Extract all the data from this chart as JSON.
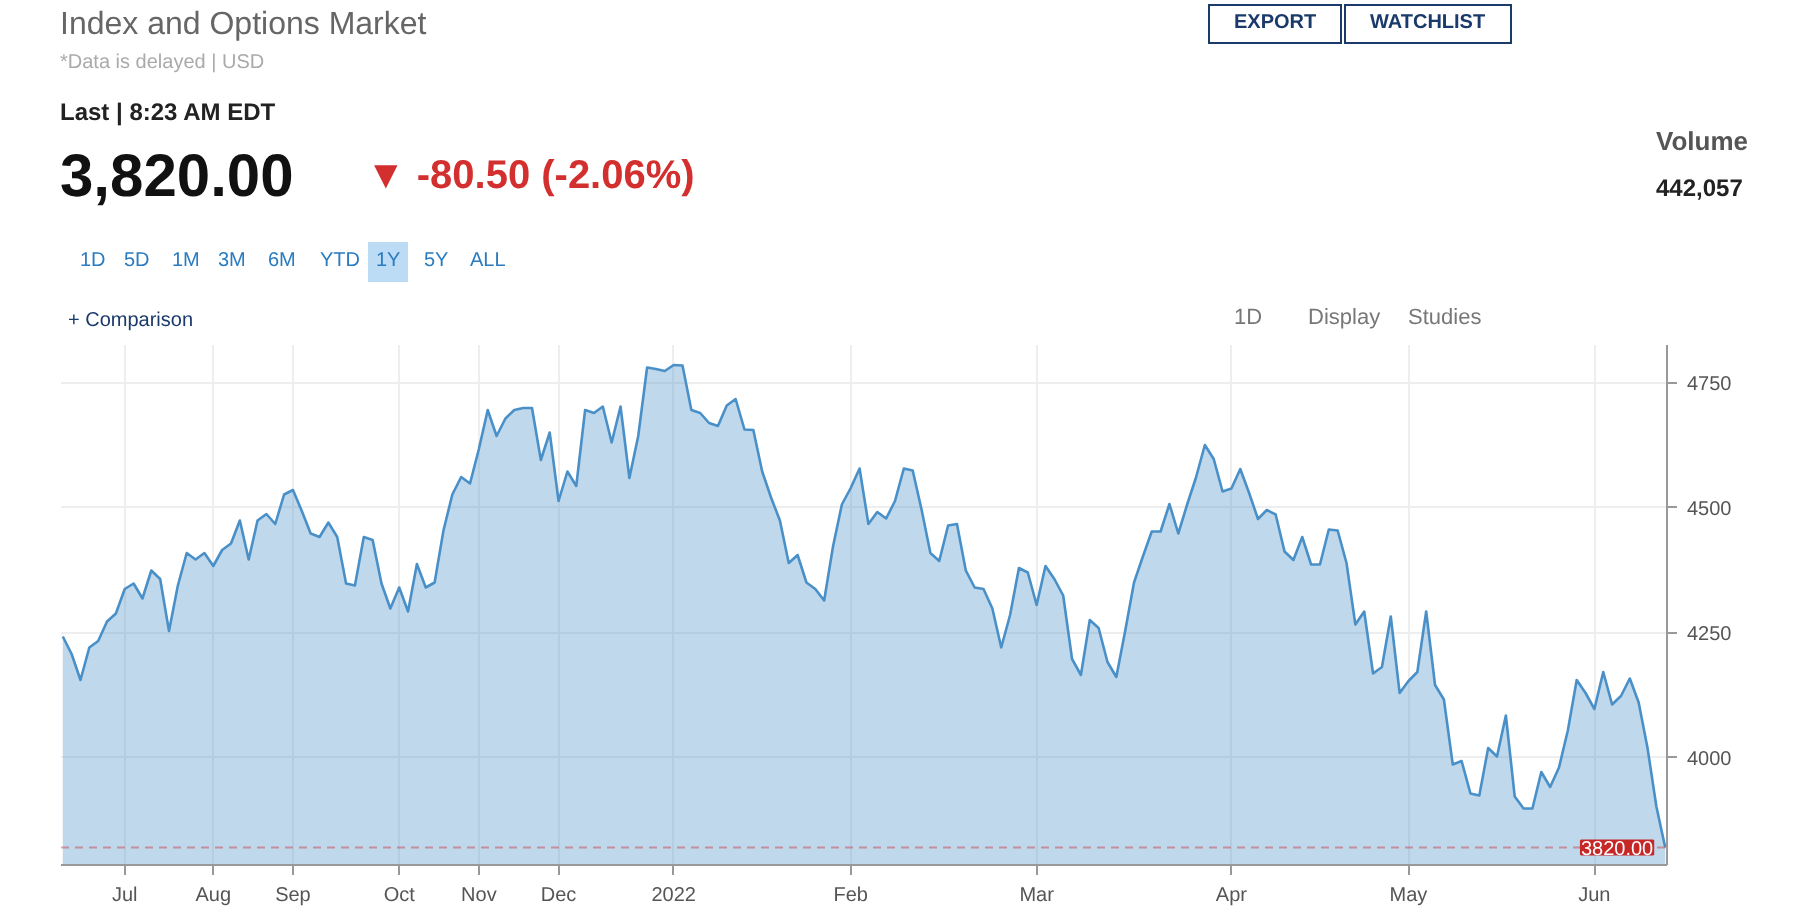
{
  "chart_data": {
    "type": "area",
    "title": "Index and Options Market",
    "subtitle": "*Data is delayed | USD",
    "annotations": [
      "Last | 8:23 AM EDT",
      "3,820.00",
      "▼ -80.50 (-2.06%)",
      "Volume",
      "442,057",
      "EXPORT",
      "WATCHLIST",
      "1D",
      "5D",
      "1M",
      "3M",
      "6M",
      "YTD",
      "1Y",
      "5Y",
      "ALL",
      "+ Comparison",
      "1D",
      "Display",
      "Studies"
    ],
    "categories": [
      null,
      null,
      null,
      null,
      null,
      null,
      null,
      "Jul",
      null,
      null,
      null,
      null,
      null,
      null,
      null,
      null,
      null,
      "Aug",
      null,
      null,
      null,
      null,
      null,
      null,
      null,
      null,
      "Sep",
      null,
      null,
      null,
      null,
      null,
      null,
      null,
      null,
      null,
      null,
      null,
      "Oct",
      null,
      null,
      null,
      null,
      null,
      null,
      null,
      null,
      "Nov",
      null,
      null,
      null,
      null,
      null,
      null,
      null,
      null,
      "Dec",
      null,
      null,
      null,
      null,
      null,
      null,
      null,
      null,
      null,
      null,
      null,
      null,
      "2022",
      null,
      null,
      null,
      null,
      null,
      null,
      null,
      null,
      null,
      null,
      null,
      null,
      null,
      null,
      null,
      null,
      null,
      null,
      null,
      "Feb",
      null,
      null,
      null,
      null,
      null,
      null,
      null,
      null,
      null,
      null,
      null,
      null,
      null,
      null,
      null,
      null,
      null,
      null,
      null,
      null,
      "Mar",
      null,
      null,
      null,
      null,
      null,
      null,
      null,
      null,
      null,
      null,
      null,
      null,
      null,
      null,
      null,
      null,
      null,
      null,
      null,
      null,
      null,
      "Apr",
      null,
      null,
      null,
      null,
      null,
      null,
      null,
      null,
      null,
      null,
      null,
      null,
      null,
      null,
      null,
      null,
      null,
      null,
      null,
      "May",
      null,
      null,
      null,
      null,
      null,
      null,
      null,
      null,
      null,
      null,
      null,
      null,
      null,
      null,
      null,
      null,
      null,
      null,
      null,
      null,
      "Jun",
      null,
      null,
      null,
      null,
      null,
      null,
      null,
      null
    ],
    "series": [
      {
        "color": "#4a90c8",
        "values": [
          4242,
          4207,
          4155,
          4220,
          4233,
          4272,
          4288,
          4337,
          4348,
          4318,
          4374,
          4357,
          4253,
          4344,
          4409,
          4396,
          4409,
          4383,
          4415,
          4428,
          4474,
          4396,
          4474,
          4487,
          4467,
          4526,
          4535,
          4493,
          4448,
          4441,
          4470,
          4441,
          4348,
          4344,
          4441,
          4435,
          4348,
          4298,
          4340,
          4292,
          4387,
          4340,
          4350,
          4454,
          4526,
          4561,
          4548,
          4617,
          4695,
          4643,
          4678,
          4695,
          4699,
          4699,
          4595,
          4650,
          4513,
          4572,
          4543,
          4695,
          4689,
          4702,
          4630,
          4702,
          4559,
          4643,
          4780,
          4777,
          4773,
          4785,
          4784,
          4695,
          4689,
          4669,
          4663,
          4704,
          4717,
          4656,
          4655,
          4572,
          4520,
          4474,
          4389,
          4405,
          4350,
          4337,
          4314,
          4422,
          4506,
          4539,
          4578,
          4467,
          4491,
          4478,
          4513,
          4578,
          4574,
          4496,
          4409,
          4393,
          4464,
          4467,
          4374,
          4340,
          4337,
          4298,
          4220,
          4285,
          4379,
          4370,
          4305,
          4383,
          4357,
          4324,
          4197,
          4165,
          4275,
          4259,
          4191,
          4161,
          4253,
          4350,
          4402,
          4452,
          4452,
          4507,
          4448,
          4506,
          4560,
          4625,
          4597,
          4532,
          4538,
          4577,
          4529,
          4477,
          4495,
          4486,
          4412,
          4395,
          4441,
          4386,
          4386,
          4456,
          4454,
          4389,
          4266,
          4292,
          4168,
          4181,
          4282,
          4129,
          4153,
          4171,
          4292,
          4145,
          4116,
          3986,
          3993,
          3928,
          3924,
          4019,
          4002,
          4084,
          3922,
          3898,
          3898,
          3971,
          3941,
          3980,
          4054,
          4155,
          4129,
          4097,
          4171,
          4106,
          4123,
          4158,
          4110,
          4019,
          3902,
          3820
        ]
      }
    ],
    "ylim": [
      3785,
      4825
    ],
    "yticks": [
      4000,
      4250,
      4500,
      4750
    ],
    "ref_lines": [
      {
        "axis": "y",
        "value": 3820,
        "label": "3820.00",
        "color": "#c62828",
        "line_style": "dashed"
      }
    ],
    "grid": true
  }
}
